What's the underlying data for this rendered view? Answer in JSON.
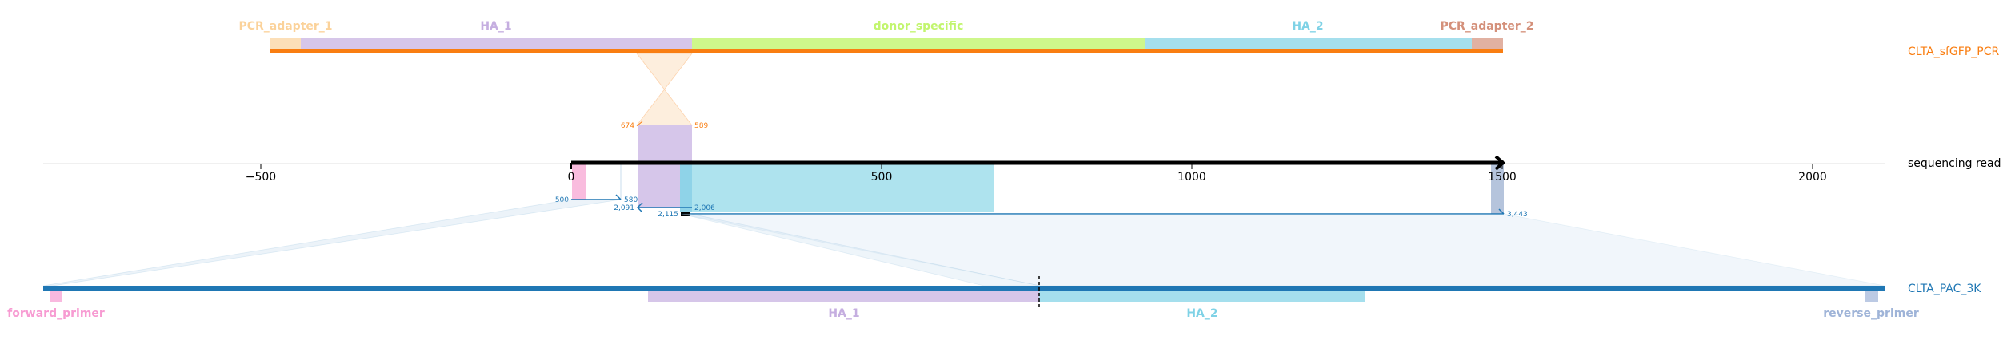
{
  "sequences": {
    "top": {
      "name": "CLTA_sfGFP_PCR",
      "color": "#f97e12"
    },
    "middle": {
      "name": "sequencing read",
      "color": "#000000"
    },
    "bottom": {
      "name": "CLTA_PAC_3K",
      "color": "#1f77b4"
    }
  },
  "top_features": [
    {
      "label": "PCR_adapter_1",
      "color": "#fbd29a"
    },
    {
      "label": "HA_1",
      "color": "#c5aee0"
    },
    {
      "label": "donor_specific",
      "color": "#c2f56e"
    },
    {
      "label": "HA_2",
      "color": "#7fd2e6"
    },
    {
      "label": "PCR_adapter_2",
      "color": "#d4907a"
    }
  ],
  "bottom_features": [
    {
      "label": "forward_primer",
      "color": "#f79bd2"
    },
    {
      "label": "HA_1",
      "color": "#c5aee0"
    },
    {
      "label": "HA_2",
      "color": "#7fd2e6"
    },
    {
      "label": "reverse_primer",
      "color": "#9fb4d8"
    }
  ],
  "axis": {
    "ticks": [
      -500,
      0,
      500,
      1000,
      1500,
      2000
    ],
    "tick_labels": [
      "−500",
      "0",
      "500",
      "1000",
      "1500",
      "2000"
    ]
  },
  "alignment_labels": {
    "top_left": "674",
    "top_right": "589",
    "read_a_left": "500",
    "read_a_right": "580",
    "read_a_bottom": "2,091",
    "read_b_left": "2,006",
    "read_b_bottom": "2,115",
    "read_c_right": "3,443"
  },
  "colors": {
    "top_alignment": "#f97e12",
    "bottom_alignment": "#1f77b4",
    "highlight_cyan": "#aee3ee",
    "highlight_purple": "#d6c6ea",
    "highlight_pink": "#f9bcde",
    "highlight_steel": "#b5c4dc"
  }
}
